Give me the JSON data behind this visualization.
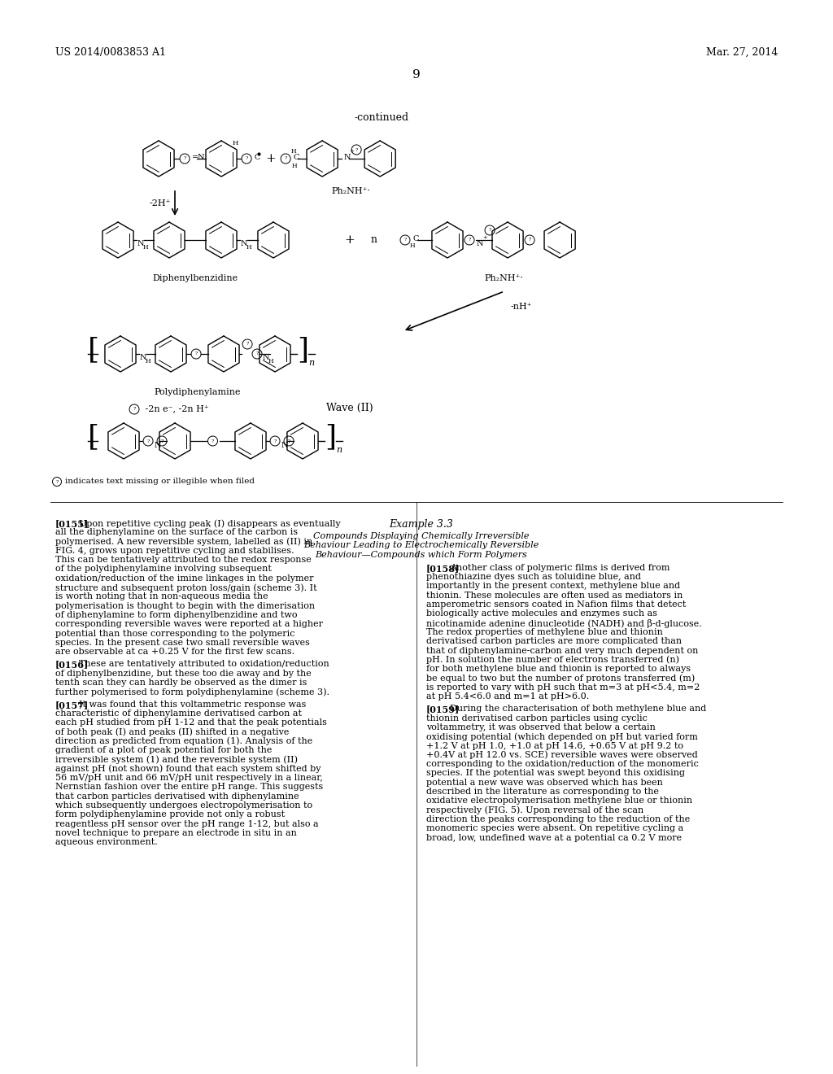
{
  "bg_color": "#ffffff",
  "header_left": "US 2014/0083853 A1",
  "header_right": "Mar. 27, 2014",
  "page_number": "9",
  "continued_label": "-continued",
  "diphenylbenzidine_label": "Diphenylbenzidine",
  "polydiphenylamine_label": "Polydiphenylamine",
  "wave_label": "Wave (II)",
  "ph2nh_label1": "Ph₂NH⁺·",
  "ph2nh_label2": "Ph₂NH⁺·",
  "minus2h_label": "-2H⁺",
  "minusnh_label": "-nH⁺",
  "minus2ne_label": " -2n e⁻, -2n H⁺",
  "indicates_label": "Ⓡ indicates text missing or illegible when filed",
  "para155_title": "[0155]",
  "para155_text": "Upon repetitive cycling peak (I) disappears as eventually all the diphenylamine on the surface of the carbon is polymerised. A new reversible system, labelled as (II) in FIG. 4, grows upon repetitive cycling and stabilises. This can be tentatively attributed to the redox response of the polydiphenylamine involving subsequent oxidation/reduction of the imine linkages in the polymer structure and subsequent proton loss/gain (scheme 3). It is worth noting that in non-aqueous media the polymerisation is thought to begin with the dimerisation of diphenylamine to form diphenylbenzidine and two corresponding reversible waves were reported at a higher potential than those corresponding to the polymeric species. In the present case two small reversible waves are observable at ca +0.25 V for the first few scans.",
  "para156_title": "[0156]",
  "para156_text": "These are tentatively attributed to oxidation/reduction of diphenylbenzidine, but these too die away and by the tenth scan they can hardly be observed as the dimer is further polymerised to form polydiphenylamine (scheme 3).",
  "para157_title": "[0157]",
  "para157_text": "It was found that this voltammetric response was characteristic of diphenylamine derivatised carbon at each pH studied from pH 1-12 and that the peak potentials of both peak (I) and peaks (II) shifted in a negative direction as predicted from equation (1). Analysis of the gradient of a plot of peak potential for both the irreversible system (1) and the reversible system (II) against pH (not shown) found that each system shifted by 56 mV/pH unit and 66 mV/pH unit respectively in a linear, Nernstian fashion over the entire pH range. This suggests that carbon particles derivatised with diphenylamine which subsequently undergoes electropolymerisation to form polydiphenylamine provide not only a robust reagentless pH sensor over the pH range 1-12, but also a novel technique to prepare an electrode in situ in an aqueous environment.",
  "example33_title": "Example 3.3",
  "example33_subtitle1": "Compounds Displaying Chemically Irreversible",
  "example33_subtitle2": "Behaviour Leading to Electrochemically Reversible",
  "example33_subtitle3": "Behaviour—Compounds which Form Polymers",
  "para158_title": "[0158]",
  "para158_text": "Another class of polymeric films is derived from phenothiazine dyes such as toluidine blue, and importantly in the present context, methylene blue and thionin. These molecules are often used as mediators in amperometric sensors coated in Nafion films that detect biologically active molecules and enzymes such as nicotinamide adenine dinucleotide (NADH) and β-d-glucose. The redox properties of methylene blue and thionin derivatised carbon particles are more complicated than that of diphenylamine-carbon and very much dependent on pH. In solution the number of electrons transferred (n) for both methylene blue and thionin is reported to always be equal to two but the number of protons transferred (m) is reported to vary with pH such that m=3 at pH<5.4, m=2 at pH 5.4<6.0 and m=1 at pH>6.0.",
  "para159_title": "[0159]",
  "para159_text": "During the characterisation of both methylene blue and thionin derivatised carbon particles using cyclic voltammetry, it was observed that below a certain oxidising potential (which depended on pH but varied form +1.2 V at pH 1.0, +1.0 at pH 14.6, +0.65 V at pH 9.2 to +0.4V at pH 12.0 vs. SCE) reversible waves were observed corresponding to the oxidation/reduction of the monomeric species. If the potential was swept beyond this oxidising potential a new wave was observed which has been described in the literature as corresponding to the oxidative electropolymerisation methylene blue or thionin respectively (FIG. 5). Upon reversal of the scan direction the peaks corresponding to the reduction of the monomeric species were absent. On repetitive cycling a broad, low, undefined wave at a potential ca 0.2 V more"
}
